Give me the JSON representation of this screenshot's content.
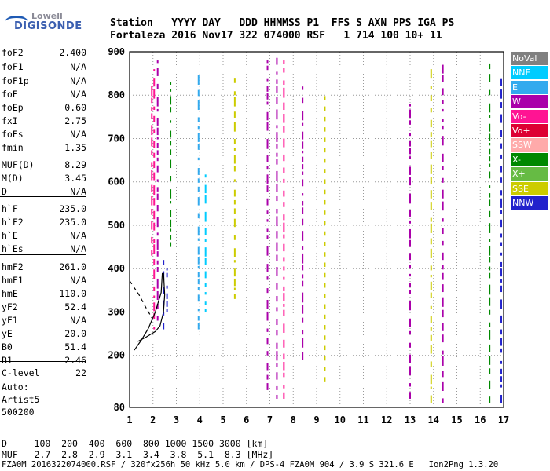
{
  "logo": {
    "line1": "Lowell",
    "line2": "DIGISONDE"
  },
  "header": {
    "line1": "Station   YYYY DAY   DDD HHMMSS P1  FFS S AXN PPS IGA PS",
    "line2": "Fortaleza 2016 Nov17 322 074000 RSF   1 714 100 10+ 11"
  },
  "params": [
    {
      "name": "foF2",
      "value": "2.400"
    },
    {
      "name": "foF1",
      "value": "N/A"
    },
    {
      "name": "foF1p",
      "value": "N/A"
    },
    {
      "name": "foE",
      "value": "N/A"
    },
    {
      "name": "foEp",
      "value": "0.60"
    },
    {
      "name": "fxI",
      "value": "2.75"
    },
    {
      "name": "foEs",
      "value": "N/A"
    },
    {
      "name": "fmin",
      "value": "1.35"
    },
    {
      "name": "MUF(D)",
      "value": "8.29"
    },
    {
      "name": "M(D)",
      "value": "3.45"
    },
    {
      "name": "D",
      "value": "N/A"
    },
    {
      "name": "h`F",
      "value": "235.0"
    },
    {
      "name": "h`F2",
      "value": "235.0"
    },
    {
      "name": "h`E",
      "value": "N/A"
    },
    {
      "name": "h`Es",
      "value": "N/A"
    },
    {
      "name": "hmF2",
      "value": "261.0"
    },
    {
      "name": "hmF1",
      "value": "N/A"
    },
    {
      "name": "hmE",
      "value": "110.0"
    },
    {
      "name": "yF2",
      "value": "52.4"
    },
    {
      "name": "yF1",
      "value": "N/A"
    },
    {
      "name": "yE",
      "value": "20.0"
    },
    {
      "name": "B0",
      "value": "51.4"
    },
    {
      "name": "B1",
      "value": "2.46"
    },
    {
      "name": "C-level",
      "value": "22"
    }
  ],
  "auto": {
    "line1": "Auto:",
    "line2": "Artist5",
    "line3": "500200"
  },
  "footer": {
    "d_row": "D     100  200  400  600  800 1000 1500 3000 [km]",
    "muf_row": "MUF   2.7  2.8  2.9  3.1  3.4  3.8  5.1  8.3 [MHz]",
    "info": "FZA0M_2016322074000.RSF / 320fx256h 50 kHz 5.0 km / DPS-4 FZA0M 904 / 3.9 S 321.6 E   Ion2Png 1.3.20"
  },
  "legend": [
    {
      "label": "NoVal",
      "color": "#808080"
    },
    {
      "label": "NNE",
      "color": "#00ccff"
    },
    {
      "label": "E",
      "color": "#33aaee"
    },
    {
      "label": "W",
      "color": "#aa00aa"
    },
    {
      "label": "Vo-",
      "color": "#ff1493"
    },
    {
      "label": "Vo+",
      "color": "#dd0033"
    },
    {
      "label": "SSW",
      "color": "#ffaaaa"
    },
    {
      "label": "X-",
      "color": "#008800"
    },
    {
      "label": "X+",
      "color": "#66bb44"
    },
    {
      "label": "SSE",
      "color": "#cccc00"
    },
    {
      "label": "NNW",
      "color": "#2222cc"
    }
  ],
  "chart_data": {
    "type": "scatter",
    "xlim": [
      1,
      17
    ],
    "ylim": [
      80,
      900
    ],
    "x_ticks": [
      1,
      2,
      3,
      4,
      5,
      6,
      7,
      8,
      9,
      10,
      11,
      12,
      13,
      14,
      15,
      16,
      17
    ],
    "y_ticks": [
      80,
      200,
      300,
      400,
      500,
      600,
      700,
      800,
      900
    ],
    "grid": true,
    "traces": [
      {
        "name": "true-height profile",
        "style": "solid",
        "points": [
          [
            1.35,
            232
          ],
          [
            1.7,
            242
          ],
          [
            2.1,
            255
          ],
          [
            2.3,
            268
          ],
          [
            2.45,
            300
          ],
          [
            2.5,
            340
          ],
          [
            2.45,
            390
          ]
        ]
      },
      {
        "name": "profile extrapolation",
        "style": "dashed",
        "points": [
          [
            1.0,
            372
          ],
          [
            1.4,
            340
          ],
          [
            1.7,
            310
          ],
          [
            2.0,
            282
          ]
        ]
      },
      {
        "name": "trace",
        "style": "solid",
        "points": [
          [
            1.2,
            212
          ],
          [
            1.5,
            235
          ],
          [
            1.8,
            262
          ],
          [
            2.1,
            300
          ],
          [
            2.35,
            345
          ],
          [
            2.4,
            390
          ]
        ]
      }
    ],
    "echo_columns": [
      {
        "x": 1.95,
        "y0": 430,
        "y1": 830,
        "color": "#ff1493"
      },
      {
        "x": 2.05,
        "y0": 260,
        "y1": 860,
        "color": "#ff1493"
      },
      {
        "x": 2.2,
        "y0": 280,
        "y1": 880,
        "color": "#aa00aa"
      },
      {
        "x": 2.45,
        "y0": 260,
        "y1": 420,
        "color": "#2222cc"
      },
      {
        "x": 2.6,
        "y0": 300,
        "y1": 400,
        "color": "#2222cc"
      },
      {
        "x": 2.75,
        "y0": 450,
        "y1": 830,
        "color": "#008800"
      },
      {
        "x": 3.95,
        "y0": 260,
        "y1": 850,
        "color": "#33aaee"
      },
      {
        "x": 4.25,
        "y0": 300,
        "y1": 620,
        "color": "#00ccff"
      },
      {
        "x": 5.5,
        "y0": 330,
        "y1": 840,
        "color": "#cccc00"
      },
      {
        "x": 6.9,
        "y0": 120,
        "y1": 880,
        "color": "#aa00aa"
      },
      {
        "x": 7.3,
        "y0": 100,
        "y1": 890,
        "color": "#aa00aa"
      },
      {
        "x": 7.6,
        "y0": 100,
        "y1": 880,
        "color": "#ff1493"
      },
      {
        "x": 8.4,
        "y0": 190,
        "y1": 820,
        "color": "#aa00aa"
      },
      {
        "x": 9.35,
        "y0": 140,
        "y1": 810,
        "color": "#cccc00"
      },
      {
        "x": 13.0,
        "y0": 100,
        "y1": 780,
        "color": "#aa00aa"
      },
      {
        "x": 13.9,
        "y0": 90,
        "y1": 860,
        "color": "#cccc00"
      },
      {
        "x": 14.4,
        "y0": 90,
        "y1": 870,
        "color": "#aa00aa"
      },
      {
        "x": 16.4,
        "y0": 90,
        "y1": 880,
        "color": "#008800"
      },
      {
        "x": 16.9,
        "y0": 90,
        "y1": 850,
        "color": "#2222cc"
      }
    ]
  }
}
